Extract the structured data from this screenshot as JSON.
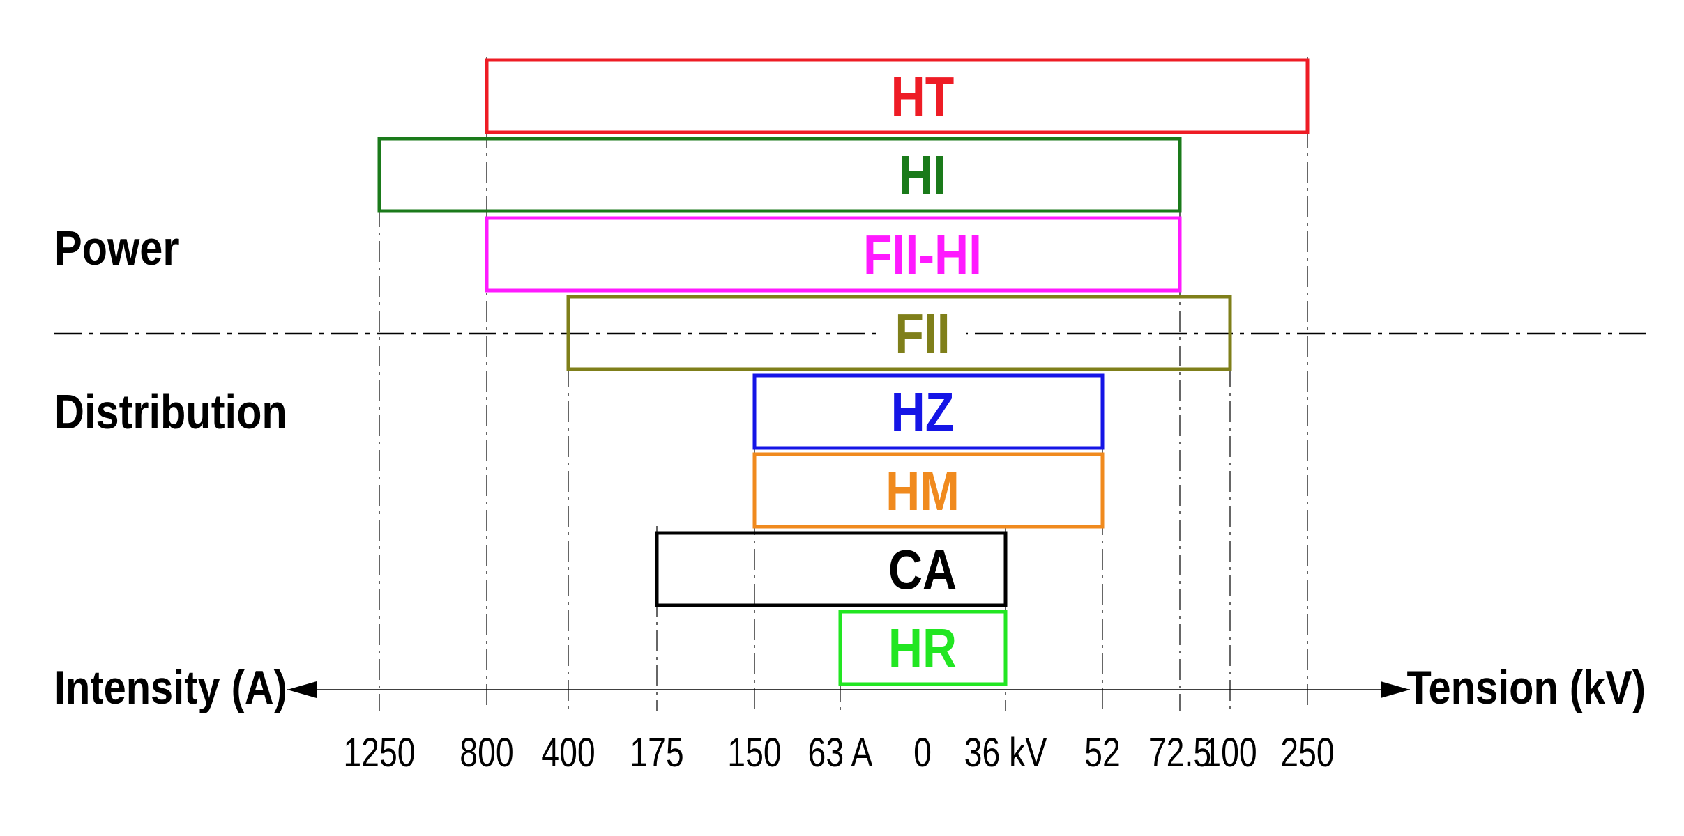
{
  "sections": {
    "power": "Power",
    "distribution": "Distribution"
  },
  "axis": {
    "left_title": "Intensity (A)",
    "right_title": "Tension (kV)",
    "ticks": [
      {
        "label": "1250"
      },
      {
        "label": "800"
      },
      {
        "label": "400"
      },
      {
        "label": "175"
      },
      {
        "label": "150"
      },
      {
        "label": "63 A"
      },
      {
        "label": "0"
      },
      {
        "label": "36 kV"
      },
      {
        "label": "52"
      },
      {
        "label": "72.5"
      },
      {
        "label": "100"
      },
      {
        "label": "250"
      }
    ]
  },
  "ranges": [
    {
      "name": "HT",
      "color": "#ee1c25",
      "from": "800",
      "to": "250"
    },
    {
      "name": "HI",
      "color": "#1a7a1a",
      "from": "1250",
      "to": "72.5"
    },
    {
      "name": "FII-HI",
      "color": "#ff1aff",
      "from": "800",
      "to": "72.5"
    },
    {
      "name": "FII",
      "color": "#7f7f1a",
      "from": "400",
      "to": "100"
    },
    {
      "name": "HZ",
      "color": "#1515e6",
      "from": "150",
      "to": "52"
    },
    {
      "name": "HM",
      "color": "#f08a1e",
      "from": "150",
      "to": "52"
    },
    {
      "name": "CA",
      "color": "#000000",
      "from": "175",
      "to": "36 kV"
    },
    {
      "name": "HR",
      "color": "#22e622",
      "from": "63 A",
      "to": "36 kV"
    }
  ]
}
